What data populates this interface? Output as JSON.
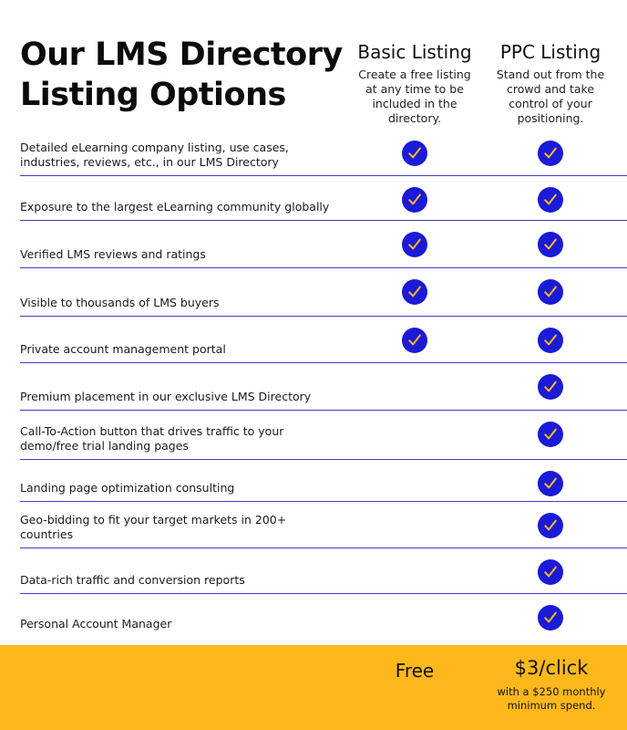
{
  "title": "Our LMS Directory Listing Options",
  "columns": {
    "basic": {
      "name": "Basic Listing",
      "description": "Create a free listing at any time to be included in the directory."
    },
    "ppc": {
      "name": "PPC Listing",
      "description": "Stand out from the crowd and take control of your positioning."
    }
  },
  "colors": {
    "accent_blue": "#1a1ad9",
    "check_yellow": "#ffb81c",
    "footer_bg": "#ffb81c",
    "rule_line": "#3d3dcc"
  },
  "features": [
    {
      "label": "Detailed eLearning company listing, use cases, industries, reviews, etc., in our LMS Directory",
      "basic": true,
      "ppc": true
    },
    {
      "label": "Exposure to the largest eLearning community globally",
      "basic": true,
      "ppc": true
    },
    {
      "label": "Verified LMS reviews and ratings",
      "basic": true,
      "ppc": true
    },
    {
      "label": "Visible to thousands of LMS buyers",
      "basic": true,
      "ppc": true
    },
    {
      "label": "Private account management portal",
      "basic": true,
      "ppc": true
    },
    {
      "label": "Premium placement in our exclusive LMS Directory",
      "basic": false,
      "ppc": true
    },
    {
      "label": "Call-To-Action button that drives traffic to your demo/free trial landing pages",
      "basic": false,
      "ppc": true
    },
    {
      "label": "Landing page optimization consulting",
      "basic": false,
      "ppc": true
    },
    {
      "label": "Geo-bidding to fit your target markets in 200+ countries",
      "basic": false,
      "ppc": true
    },
    {
      "label": "Data-rich traffic and conversion reports",
      "basic": false,
      "ppc": true
    },
    {
      "label": "Personal Account Manager",
      "basic": false,
      "ppc": true
    }
  ],
  "pricing": {
    "basic": "Free",
    "ppc": "$3/click",
    "ppc_note": "with a $250 monthly minimum spend."
  }
}
